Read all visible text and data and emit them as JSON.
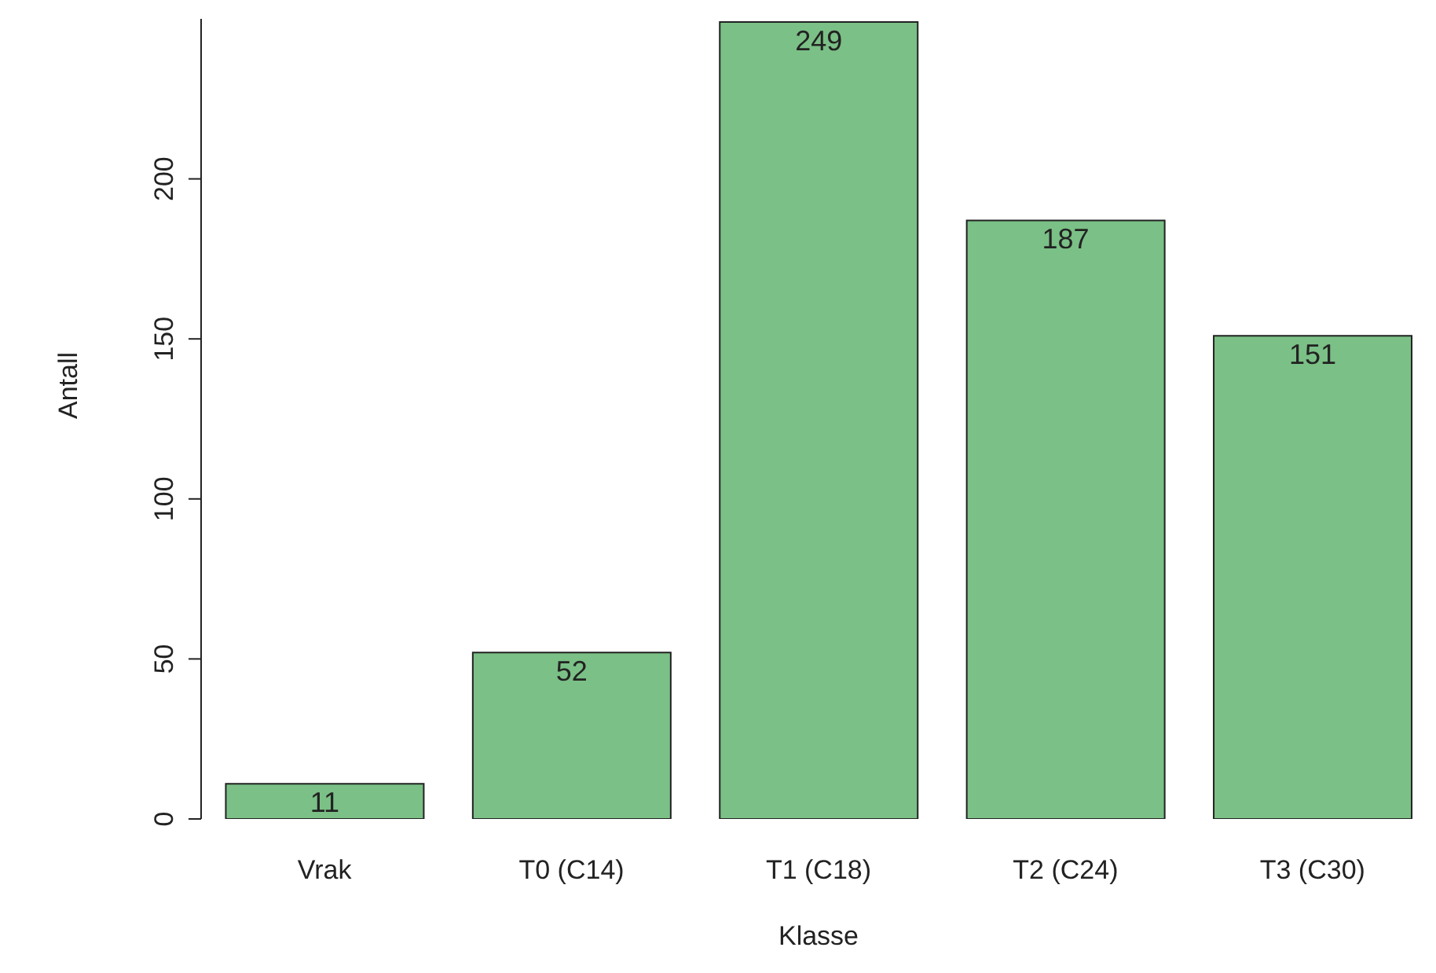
{
  "chart_data": {
    "type": "bar",
    "xlabel": "Klasse",
    "ylabel": "Antall",
    "categories": [
      "Vrak",
      "T0 (C14)",
      "T1 (C18)",
      "T2 (C24)",
      "T3 (C30)"
    ],
    "values": [
      11,
      52,
      249,
      187,
      151
    ],
    "color": "#7bc086",
    "ylim": [
      0,
      250
    ],
    "yticks": [
      0,
      50,
      100,
      150,
      200
    ],
    "grid": false,
    "legend": false,
    "data_labels": true
  }
}
